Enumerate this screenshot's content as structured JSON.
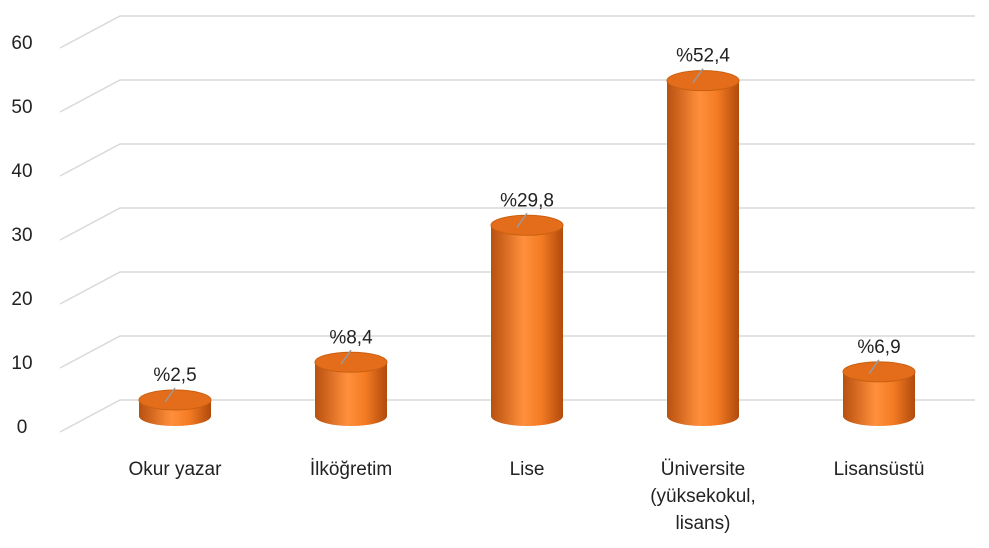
{
  "chart_data": {
    "type": "cylinder",
    "categories": [
      "Okur yazar",
      "İlköğretim",
      "Lise",
      "Üniversite\n(yüksekokul,\nlisans)",
      "Lisansüstü"
    ],
    "values": [
      2.5,
      8.4,
      29.8,
      52.4,
      6.9
    ],
    "value_labels": [
      "%2,5",
      "%8,4",
      "%29,8",
      "%52,4",
      "%6,9"
    ],
    "color": "#f07a26",
    "ylim": [
      0,
      70
    ],
    "yticks": [
      0,
      10,
      20,
      30,
      40,
      50,
      60
    ],
    "grid": true
  }
}
